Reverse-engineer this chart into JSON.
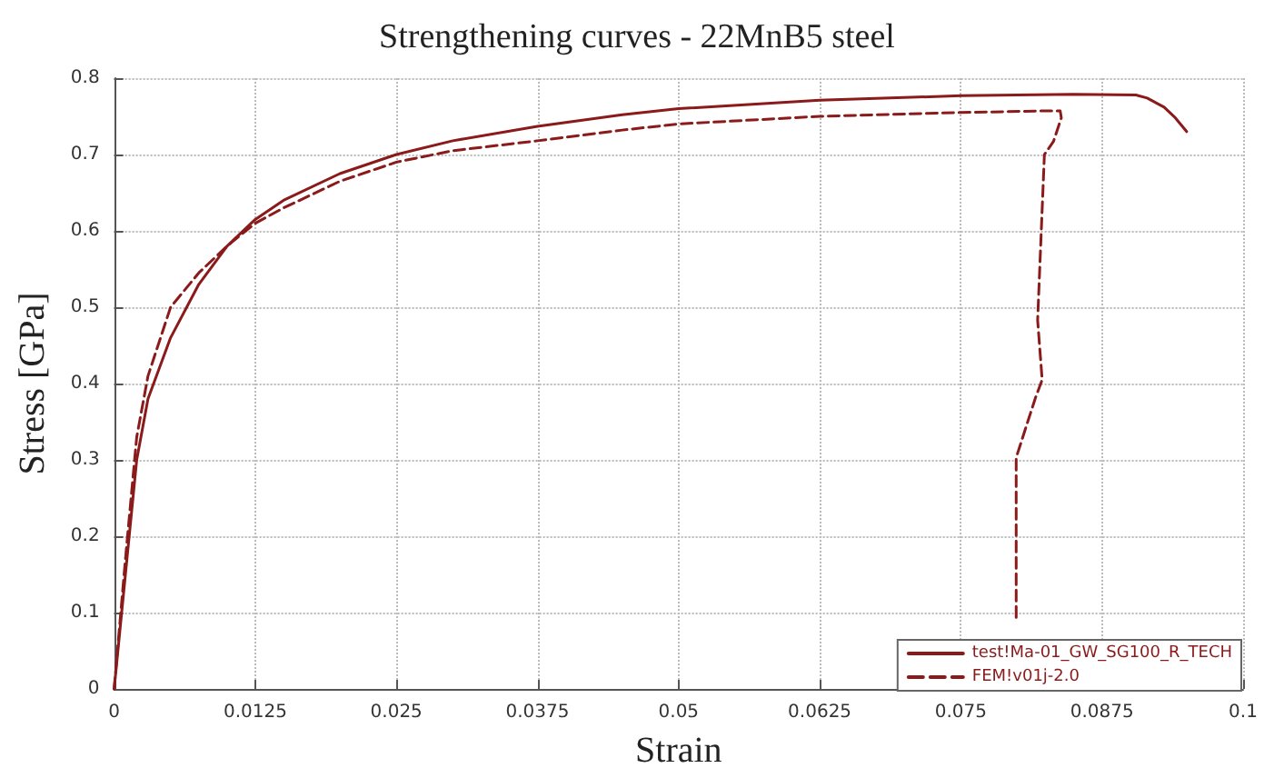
{
  "chart_data": {
    "type": "line",
    "title": "Strengthening curves - 22MnB5 steel",
    "xlabel": "Strain",
    "ylabel": "Stress [GPa]",
    "xlim": [
      0,
      0.1
    ],
    "xticks": [
      0,
      0.0125,
      0.025,
      0.0375,
      0.05,
      0.0625,
      0.075,
      0.0875,
      0.1
    ],
    "ylim": [
      0,
      0.8
    ],
    "yticks": [
      0,
      0.1,
      0.2,
      0.3,
      0.4,
      0.5,
      0.6,
      0.7,
      0.8
    ],
    "grid": true,
    "legend": "bottom right",
    "marker": "none",
    "series": [
      {
        "name": "test!Ma-01_GW_SG100_R_TECH",
        "color": "#8b1a1a",
        "line_style": "solid",
        "x": [
          0,
          0.001,
          0.002,
          0.003,
          0.005,
          0.0075,
          0.01,
          0.0125,
          0.015,
          0.02,
          0.025,
          0.03,
          0.0375,
          0.045,
          0.05,
          0.0625,
          0.075,
          0.085,
          0.0905,
          0.0915,
          0.093,
          0.094,
          0.095
        ],
        "values": [
          0,
          0.15,
          0.3,
          0.38,
          0.46,
          0.53,
          0.58,
          0.615,
          0.64,
          0.675,
          0.7,
          0.718,
          0.737,
          0.752,
          0.76,
          0.771,
          0.777,
          0.779,
          0.778,
          0.774,
          0.762,
          0.748,
          0.73
        ]
      },
      {
        "name": "FEM!v01j-2.0",
        "color": "#8b1a1a",
        "line_style": "dashed",
        "x": [
          0,
          0.001,
          0.002,
          0.003,
          0.005,
          0.0075,
          0.01,
          0.0125,
          0.015,
          0.02,
          0.025,
          0.03,
          0.0375,
          0.045,
          0.05,
          0.0625,
          0.075,
          0.082,
          0.0838,
          0.0839,
          0.0832,
          0.0824,
          0.0818,
          0.0822,
          0.0816,
          0.0799,
          0.0799
        ],
        "values": [
          0,
          0.17,
          0.33,
          0.41,
          0.5,
          0.545,
          0.58,
          0.61,
          0.63,
          0.665,
          0.69,
          0.705,
          0.718,
          0.732,
          0.74,
          0.75,
          0.755,
          0.757,
          0.757,
          0.748,
          0.717,
          0.7,
          0.483,
          0.405,
          0.381,
          0.303,
          0.09
        ]
      }
    ]
  }
}
